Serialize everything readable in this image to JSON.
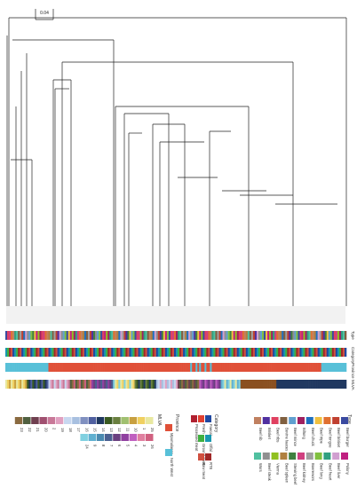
{
  "scale_bar": {
    "label": "0.04"
  },
  "track_labels": [
    "Type",
    "Category",
    "Province",
    "MLVA"
  ],
  "legends": {
    "mlva": {
      "title": "MLVA",
      "row1": [
        "25",
        "1",
        "10",
        "11",
        "12",
        "13",
        "14",
        "15",
        "16",
        "17",
        "18",
        "19",
        "2",
        "20",
        "21",
        "22",
        "23"
      ],
      "row2": [
        "26",
        "3",
        "4",
        "5",
        "6",
        "7",
        "8",
        "9",
        "24"
      ],
      "colors_row1": [
        "#e8e8a0",
        "#f0d060",
        "#c8a040",
        "#a0c070",
        "#6a8040",
        "#3a5a20",
        "#203860",
        "#5060a0",
        "#8090c0",
        "#a8c0e0",
        "#c8d8f0",
        "#e0a0c0",
        "#c87898",
        "#a05070",
        "#704050",
        "#506040",
        "#8a6a40"
      ],
      "colors_row2": [
        "#d06080",
        "#e080a0",
        "#c060c0",
        "#9040a0",
        "#6a4080",
        "#4a6090",
        "#4a8ab0",
        "#60b0d0",
        "#80d0e0"
      ]
    },
    "province": {
      "title": "Province",
      "items": [
        "Mpumalanga",
        "North West"
      ],
      "colors": [
        "#e05038",
        "#58c0d8"
      ]
    },
    "category": {
      "title": "Category",
      "items": [
        "Faecal",
        "Fresh",
        "Processed meat",
        "Offal",
        "Ground meat",
        "RTE",
        "Raw meat"
      ],
      "colors": [
        "#2048a0",
        "#e04030",
        "#b02030",
        "#1898b0",
        "#40b040",
        "#a02828",
        "#d05040"
      ]
    },
    "type": {
      "title": "Type",
      "items": [
        "Beef burger",
        "Beef brisket",
        "Beef tongue",
        "Beef tripe",
        "Beef chuck",
        "Biltong",
        "Beef mince",
        "Bovine faeces",
        "Beef ribs",
        "Brisket",
        "Beef rib",
        "Polony",
        "Beef liver",
        "Beef heart",
        "Beef lung",
        "Boerewors",
        "Beef kidney",
        "Stewing beef",
        "Beef spleen",
        "Vienna",
        "Beef steak",
        "Wors"
      ],
      "colors": [
        "#3a4aa0",
        "#c04030",
        "#e07030",
        "#f0c040",
        "#2070c0",
        "#a02060",
        "#60a0d0",
        "#806040",
        "#e04060",
        "#5030a0",
        "#c08060",
        "#c02080",
        "#d0a0d0",
        "#30a080",
        "#80c040",
        "#a0a0a0",
        "#d04080",
        "#408040",
        "#b08040",
        "#90c020",
        "#909090",
        "#50c0a0"
      ]
    }
  }
}
